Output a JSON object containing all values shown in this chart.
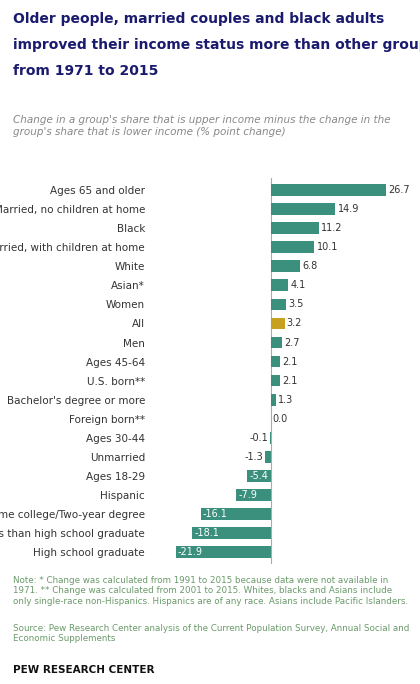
{
  "title_line1": "Older people, married couples and black adults",
  "title_line2": "improved their income status more than other groups",
  "title_line3": "from 1971 to 2015",
  "subtitle": "Change in a group's share that is upper income minus the change in the\ngroup's share that is lower income (% point change)",
  "categories": [
    "Ages 65 and older",
    "Married, no children at home",
    "Black",
    "Married, with children at home",
    "White",
    "Asian*",
    "Women",
    "All",
    "Men",
    "Ages 45-64",
    "U.S. born**",
    "Bachelor's degree or more",
    "Foreign born**",
    "Ages 30-44",
    "Unmarried",
    "Ages 18-29",
    "Hispanic",
    "Some college/Two-year degree",
    "Less than high school graduate",
    "High school graduate"
  ],
  "values": [
    26.7,
    14.9,
    11.2,
    10.1,
    6.8,
    4.1,
    3.5,
    3.2,
    2.7,
    2.1,
    2.1,
    1.3,
    0.0,
    -0.1,
    -1.3,
    -5.4,
    -7.9,
    -16.1,
    -18.1,
    -21.9
  ],
  "bar_color_default": "#3a8f7d",
  "bar_color_all": "#c8a020",
  "note_text": "Note: * Change was calculated from 1991 to 2015 because data were not available in\n1971. ** Change was calculated from 2001 to 2015. Whites, blacks and Asians include\nonly single-race non-Hispanics. Hispanics are of any race. Asians include Pacific Islanders.",
  "source_text": "Source: Pew Research Center analysis of the Current Population Survey, Annual Social and\nEconomic Supplements",
  "pew_label": "PEW RESEARCH CENTER",
  "title_color": "#1a1a6e",
  "subtitle_color": "#888888",
  "note_color": "#6a9a6a",
  "label_inside_color": "#ffffff",
  "label_outside_color": "#333333",
  "zero_line_color": "#aaaaaa",
  "xlim_min": -28,
  "xlim_max": 32,
  "threshold_inside": -5.0
}
